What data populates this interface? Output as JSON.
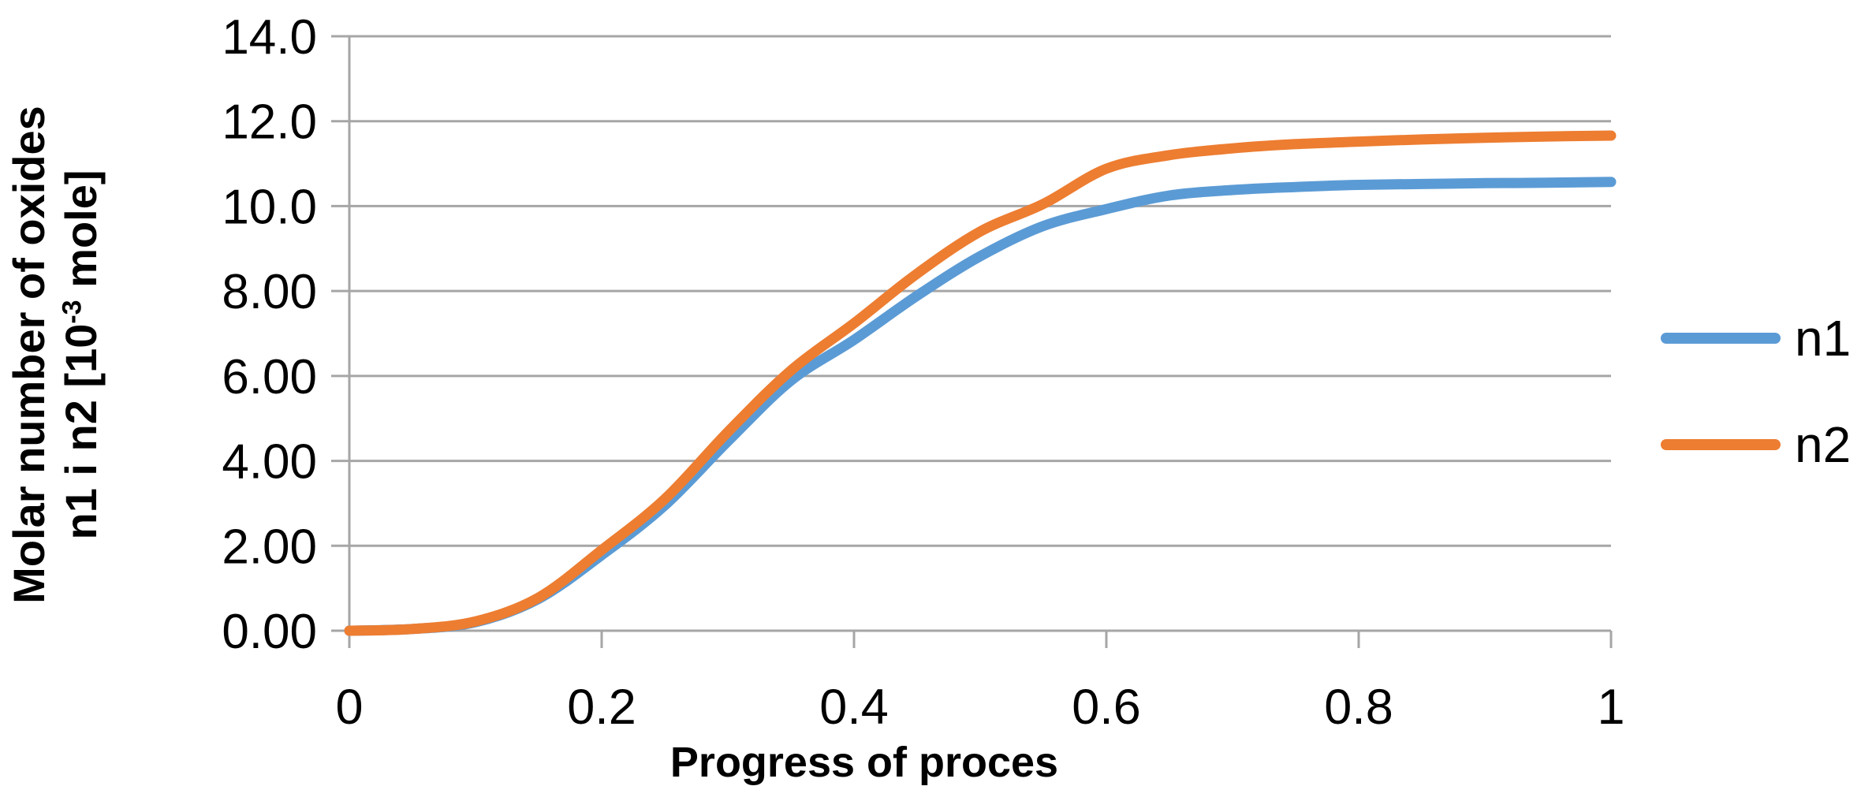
{
  "chart_data": {
    "type": "line",
    "title": "",
    "xlabel": "Progress of proces",
    "ylabel_line1": "Molar number of oxides",
    "ylabel_line2_pre": "n1 i n2 [10",
    "ylabel_line2_sup": "-3",
    "ylabel_line2_post": " mole]",
    "xlim": [
      0,
      1
    ],
    "ylim": [
      0,
      14
    ],
    "grid": "horizontal-major",
    "legend_position": "right-middle",
    "axis_color": "#a6a6a6",
    "text_color": "#000000",
    "x_ticks": {
      "values": [
        0,
        0.2,
        0.4,
        0.6,
        0.8,
        1
      ],
      "labels": [
        "0",
        "0.2",
        "0.4",
        "0.6",
        "0.8",
        "1"
      ]
    },
    "y_ticks": {
      "values": [
        0,
        2,
        4,
        6,
        8,
        10,
        12,
        14
      ],
      "labels": [
        "0.00",
        "2.00",
        "4.00",
        "6.00",
        "8.00",
        "10.0",
        "12.0",
        "14.0"
      ]
    },
    "x": [
      0,
      0.05,
      0.1,
      0.15,
      0.2,
      0.25,
      0.3,
      0.35,
      0.4,
      0.45,
      0.5,
      0.55,
      0.6,
      0.65,
      0.7,
      0.75,
      0.8,
      0.85,
      0.9,
      0.95,
      1.0
    ],
    "series": [
      {
        "name": "n1",
        "color": "#5B9BD5",
        "values": [
          0.0,
          0.04,
          0.2,
          0.75,
          1.78,
          2.95,
          4.46,
          5.89,
          6.85,
          7.89,
          8.82,
          9.53,
          9.93,
          10.25,
          10.38,
          10.45,
          10.5,
          10.52,
          10.54,
          10.55,
          10.57
        ]
      },
      {
        "name": "n2",
        "color": "#ED7D31",
        "values": [
          0.0,
          0.04,
          0.22,
          0.78,
          1.9,
          3.1,
          4.68,
          6.13,
          7.24,
          8.41,
          9.4,
          10.05,
          10.88,
          11.2,
          11.36,
          11.46,
          11.52,
          11.57,
          11.61,
          11.64,
          11.66
        ]
      }
    ]
  }
}
